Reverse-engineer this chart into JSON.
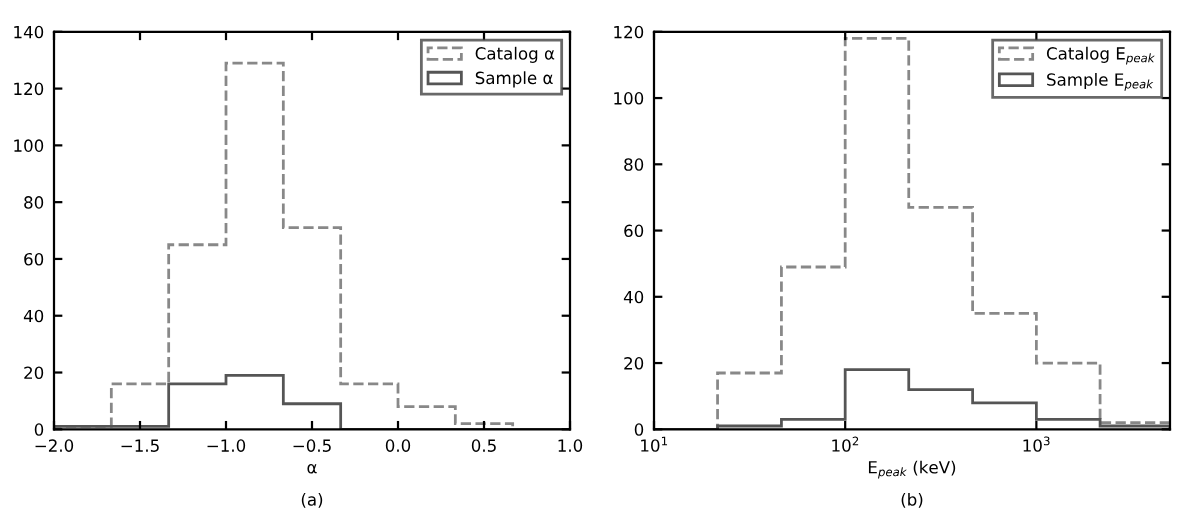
{
  "chart_data": [
    {
      "type": "histogram",
      "xlabel": "α",
      "annotations": [
        "(a)"
      ],
      "bins": [
        -2.0,
        -1.6667,
        -1.3333,
        -1.0,
        -0.6667,
        -0.3333,
        0.0,
        0.3333,
        0.6667,
        1.0
      ],
      "xlim": [
        -2.0,
        1.0
      ],
      "xticks": [
        {
          "value": -2.0,
          "label": "−2.0"
        },
        {
          "value": -1.5,
          "label": "−1.5"
        },
        {
          "value": -1.0,
          "label": "−1.0"
        },
        {
          "value": -0.5,
          "label": "−0.5"
        },
        {
          "value": 0.0,
          "label": "0.0"
        },
        {
          "value": 0.5,
          "label": "0.5"
        },
        {
          "value": 1.0,
          "label": "1.0"
        }
      ],
      "ylim": [
        0,
        140
      ],
      "yticks": [
        0,
        20,
        40,
        60,
        80,
        100,
        120,
        140
      ],
      "legend": "top right",
      "grid": false,
      "series": [
        {
          "name": "Catalog α",
          "color": "#888888",
          "line_style": "dashed",
          "values": [
            1,
            16,
            65,
            129,
            71,
            16,
            8,
            2,
            0
          ]
        },
        {
          "name": "Sample α",
          "color": "#555555",
          "line_style": "solid",
          "values": [
            1,
            1,
            16,
            19,
            9,
            0,
            0,
            0,
            0
          ]
        }
      ]
    },
    {
      "type": "histogram",
      "xlabel": "E$_{peak}$ (keV)",
      "annotations": [
        "(b)"
      ],
      "log": "x",
      "bins": [
        10,
        21.5,
        46.4,
        100,
        215,
        464,
        1000,
        2154,
        5000
      ],
      "xlim": [
        10,
        5000
      ],
      "xticks": [
        {
          "value": 10,
          "label": "10$^{1}$"
        },
        {
          "value": 100,
          "label": "10$^{2}$"
        },
        {
          "value": 1000,
          "label": "10$^{3}$"
        }
      ],
      "ylim": [
        0,
        120
      ],
      "yticks": [
        0,
        20,
        40,
        60,
        80,
        100,
        120
      ],
      "legend": "top right",
      "grid": false,
      "series": [
        {
          "name": "Catalog E$_{peak}$",
          "color": "#888888",
          "line_style": "dashed",
          "values": [
            0,
            17,
            49,
            118,
            67,
            35,
            20,
            2
          ]
        },
        {
          "name": "Sample E$_{peak}$",
          "color": "#555555",
          "line_style": "solid",
          "values": [
            0,
            1,
            3,
            18,
            12,
            8,
            3,
            1
          ]
        }
      ]
    }
  ]
}
